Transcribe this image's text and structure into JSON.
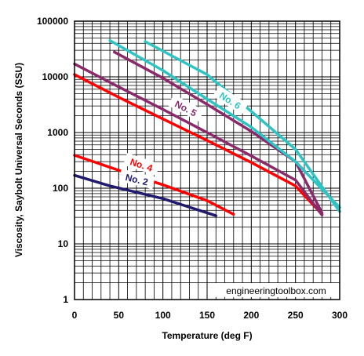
{
  "chart_data": {
    "type": "line",
    "title": "",
    "xlabel": "Temperature (deg F)",
    "ylabel": "Viscosity, Saybolt Universal Seconds (SSU)",
    "xlim": [
      0,
      300
    ],
    "ylim": [
      1,
      100000
    ],
    "yscale": "log",
    "xticks": [
      "0",
      "50",
      "100",
      "150",
      "200",
      "250",
      "300"
    ],
    "yticks": [
      "1",
      "10",
      "100",
      "1000",
      "10000",
      "100000"
    ],
    "grid": true,
    "watermark": "engineeringtoolbox.com",
    "series": [
      {
        "name": "No. 2",
        "color": "#1f1a6e",
        "labels": [
          "No. 2"
        ],
        "points": [
          [
            0,
            170
          ],
          [
            40,
            110
          ],
          [
            100,
            65
          ],
          [
            160,
            32
          ]
        ]
      },
      {
        "name": "No. 4",
        "color": "#ff0000",
        "labels": [
          "No. 4"
        ],
        "points": [
          [
            0,
            390
          ],
          [
            50,
            210
          ],
          [
            100,
            115
          ],
          [
            150,
            60
          ],
          [
            180,
            34
          ]
        ]
      },
      {
        "name": "No. 4",
        "color": "#ff0000",
        "labels": [],
        "points": [
          [
            0,
            11000
          ],
          [
            50,
            4300
          ],
          [
            100,
            1750
          ],
          [
            150,
            720
          ],
          [
            200,
            290
          ],
          [
            250,
            110
          ],
          [
            280,
            34
          ]
        ]
      },
      {
        "name": "No. 5",
        "color": "#8b2a6b",
        "labels": [
          "No. 5"
        ],
        "points": [
          [
            0,
            17000
          ],
          [
            50,
            6600
          ],
          [
            100,
            2600
          ],
          [
            150,
            1000
          ],
          [
            200,
            380
          ],
          [
            250,
            140
          ],
          [
            280,
            33
          ]
        ]
      },
      {
        "name": "No. 5",
        "color": "#8b2a6b",
        "labels": [],
        "points": [
          [
            45,
            28000
          ],
          [
            100,
            9500
          ],
          [
            150,
            3200
          ],
          [
            200,
            1050
          ],
          [
            250,
            300
          ],
          [
            280,
            36
          ]
        ]
      },
      {
        "name": "No. 6",
        "color": "#2fc4c4",
        "labels": [
          "No. 6"
        ],
        "points": [
          [
            40,
            45000
          ],
          [
            100,
            13000
          ],
          [
            150,
            4000
          ],
          [
            200,
            1250
          ],
          [
            250,
            300
          ],
          [
            300,
            45
          ]
        ]
      },
      {
        "name": "No. 6",
        "color": "#2fc4c4",
        "labels": [],
        "points": [
          [
            80,
            43000
          ],
          [
            150,
            11000
          ],
          [
            200,
            2400
          ],
          [
            250,
            500
          ],
          [
            300,
            38
          ]
        ]
      }
    ]
  }
}
